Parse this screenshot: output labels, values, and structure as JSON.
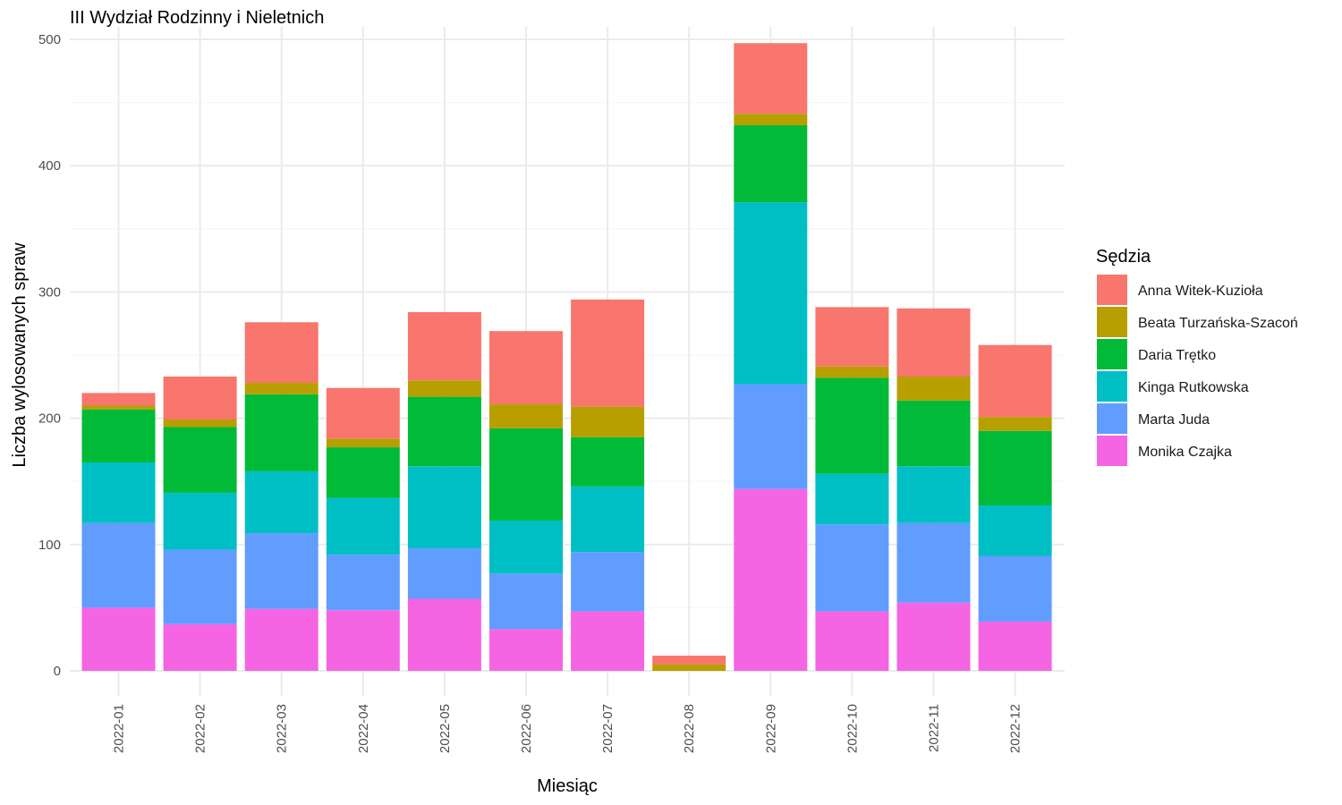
{
  "chart_data": {
    "type": "bar",
    "stacked": true,
    "title": "III Wydział Rodzinny i Nieletnich",
    "xlabel": "Miesiąc",
    "ylabel": "Liczba wylosowanych spraw",
    "ylim": [
      0,
      500
    ],
    "yticks": [
      0,
      100,
      200,
      300,
      400,
      500
    ],
    "grid": true,
    "legend": {
      "title": "Sędzia",
      "position": "right"
    },
    "categories": [
      "2022-01",
      "2022-02",
      "2022-03",
      "2022-04",
      "2022-05",
      "2022-06",
      "2022-07",
      "2022-08",
      "2022-09",
      "2022-10",
      "2022-11",
      "2022-12"
    ],
    "series": [
      {
        "name": "Anna Witek-Kuzioła",
        "color": "#F8766D",
        "values": [
          10,
          34,
          48,
          40,
          54,
          58,
          85,
          7,
          56,
          47,
          54,
          57
        ]
      },
      {
        "name": "Beata Turzańska-Szacoń",
        "color": "#B79F00",
        "values": [
          3,
          6,
          9,
          7,
          13,
          19,
          24,
          5,
          9,
          9,
          19,
          11
        ]
      },
      {
        "name": "Daria Trętko",
        "color": "#00BA38",
        "values": [
          42,
          52,
          61,
          40,
          55,
          73,
          39,
          0,
          61,
          76,
          52,
          59
        ]
      },
      {
        "name": "Kinga Rutkowska",
        "color": "#00BFC4",
        "values": [
          48,
          45,
          49,
          45,
          65,
          42,
          52,
          0,
          144,
          40,
          45,
          40
        ]
      },
      {
        "name": "Marta Juda",
        "color": "#619CFF",
        "values": [
          67,
          59,
          60,
          44,
          40,
          44,
          47,
          0,
          83,
          69,
          63,
          52
        ]
      },
      {
        "name": "Monika Czajka",
        "color": "#F564E3",
        "values": [
          50,
          37,
          49,
          48,
          57,
          33,
          47,
          0,
          144,
          47,
          54,
          39
        ]
      }
    ]
  }
}
